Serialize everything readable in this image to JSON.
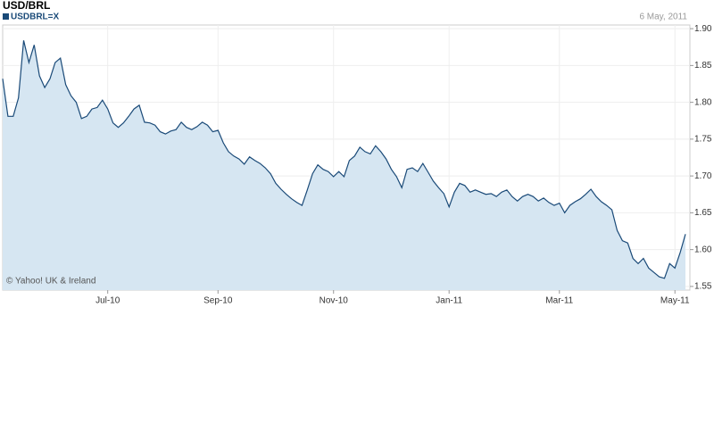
{
  "chart_data": {
    "type": "area",
    "title": "USD/BRL",
    "date": "6 May, 2011",
    "annotation": "© Yahoo! UK & Ireland",
    "categories": [
      null,
      null,
      null,
      null,
      null,
      null,
      null,
      null,
      null,
      null,
      null,
      null,
      null,
      null,
      null,
      null,
      null,
      null,
      null,
      null,
      "Jul-10",
      null,
      null,
      null,
      null,
      null,
      null,
      null,
      null,
      null,
      null,
      null,
      null,
      null,
      null,
      null,
      null,
      null,
      null,
      null,
      null,
      "Sep-10",
      null,
      null,
      null,
      null,
      null,
      null,
      null,
      null,
      null,
      null,
      null,
      null,
      null,
      null,
      null,
      null,
      null,
      null,
      null,
      null,
      null,
      "Nov-10",
      null,
      null,
      null,
      null,
      null,
      null,
      null,
      null,
      null,
      null,
      null,
      null,
      null,
      null,
      null,
      null,
      null,
      null,
      null,
      null,
      null,
      "Jan-11",
      null,
      null,
      null,
      null,
      null,
      null,
      null,
      null,
      null,
      null,
      null,
      null,
      null,
      null,
      null,
      null,
      null,
      null,
      null,
      null,
      "Mar-11",
      null,
      null,
      null,
      null,
      null,
      null,
      null,
      null,
      null,
      null,
      null,
      null,
      null,
      null,
      null,
      null,
      null,
      null,
      null,
      null,
      null,
      "May-11",
      null,
      null
    ],
    "series": [
      {
        "name": "USDBRL=X",
        "color": "#1a4a78",
        "fill": "#d6e6f2",
        "values": [
          1.832,
          1.781,
          1.781,
          1.806,
          1.884,
          1.854,
          1.878,
          1.836,
          1.82,
          1.832,
          1.854,
          1.86,
          1.824,
          1.809,
          1.8,
          1.778,
          1.781,
          1.791,
          1.793,
          1.803,
          1.791,
          1.772,
          1.766,
          1.772,
          1.781,
          1.791,
          1.796,
          1.773,
          1.772,
          1.769,
          1.76,
          1.757,
          1.761,
          1.763,
          1.773,
          1.766,
          1.763,
          1.767,
          1.773,
          1.769,
          1.76,
          1.762,
          1.745,
          1.733,
          1.727,
          1.723,
          1.716,
          1.726,
          1.721,
          1.717,
          1.711,
          1.703,
          1.69,
          1.682,
          1.675,
          1.669,
          1.664,
          1.66,
          1.681,
          1.703,
          1.715,
          1.709,
          1.706,
          1.699,
          1.706,
          1.699,
          1.721,
          1.727,
          1.739,
          1.733,
          1.73,
          1.741,
          1.733,
          1.723,
          1.709,
          1.699,
          1.684,
          1.709,
          1.711,
          1.706,
          1.717,
          1.705,
          1.693,
          1.684,
          1.676,
          1.658,
          1.678,
          1.69,
          1.687,
          1.678,
          1.681,
          1.678,
          1.675,
          1.676,
          1.672,
          1.678,
          1.681,
          1.672,
          1.666,
          1.672,
          1.675,
          1.672,
          1.666,
          1.67,
          1.664,
          1.66,
          1.663,
          1.65,
          1.66,
          1.665,
          1.669,
          1.675,
          1.682,
          1.672,
          1.665,
          1.66,
          1.654,
          1.626,
          1.612,
          1.609,
          1.588,
          1.581,
          1.588,
          1.575,
          1.569,
          1.563,
          1.561,
          1.581,
          1.575,
          1.596,
          1.621
        ]
      }
    ],
    "ylim": [
      1.545,
      1.905
    ],
    "yticks": [
      {
        "value": 1.55,
        "label": "1.55"
      },
      {
        "value": 1.6,
        "label": "1.60"
      },
      1.65,
      {
        "value": 1.7,
        "label": "1.70"
      },
      1.75,
      {
        "value": 1.8,
        "label": "1.80"
      },
      1.85,
      {
        "value": 1.9,
        "label": "1.90"
      }
    ],
    "grid": true
  }
}
